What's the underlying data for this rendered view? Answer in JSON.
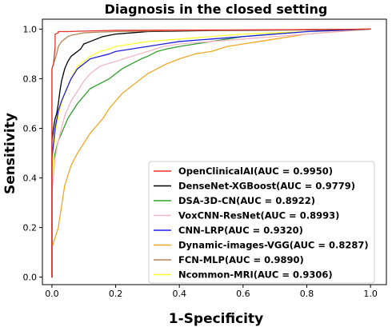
{
  "chart_data": {
    "type": "line",
    "title": "Diagnosis in the closed setting",
    "xlabel": "1-Specificity",
    "ylabel": "Sensitivity",
    "xlim": [
      -0.03,
      1.05
    ],
    "ylim": [
      -0.03,
      1.04
    ],
    "xticks": [
      0.0,
      0.2,
      0.4,
      0.6,
      0.8,
      1.0
    ],
    "yticks": [
      0.0,
      0.2,
      0.4,
      0.6,
      0.8,
      1.0
    ],
    "xtick_labels": [
      "0.0",
      "0.2",
      "0.4",
      "0.6",
      "0.8",
      "1.0"
    ],
    "ytick_labels": [
      "0.0",
      "0.2",
      "0.4",
      "0.6",
      "0.8",
      "1.0"
    ],
    "grid": false,
    "legend_position": "lower-right",
    "series": [
      {
        "name": "OpenClinicalAI(AUC = 0.9950)",
        "color": "#e8322a",
        "x": [
          0.0,
          0.0,
          0.005,
          0.01,
          0.01,
          0.02,
          0.02,
          0.05,
          0.1,
          0.2,
          0.4,
          0.6,
          0.8,
          0.9,
          1.0
        ],
        "y": [
          0.0,
          0.84,
          0.86,
          0.93,
          0.98,
          0.985,
          0.99,
          0.99,
          0.992,
          0.995,
          0.996,
          0.997,
          0.998,
          0.999,
          1.0
        ]
      },
      {
        "name": "DenseNet-XGBoost(AUC = 0.9779)",
        "color": "#000000",
        "x": [
          0.0,
          0.0,
          0.005,
          0.01,
          0.015,
          0.02,
          0.025,
          0.03,
          0.04,
          0.05,
          0.06,
          0.07,
          0.08,
          0.09,
          0.1,
          0.12,
          0.14,
          0.16,
          0.2,
          0.25,
          0.3,
          0.4,
          0.5,
          0.6,
          0.7,
          0.8,
          0.9,
          1.0
        ],
        "y": [
          0.0,
          0.55,
          0.6,
          0.64,
          0.66,
          0.7,
          0.75,
          0.79,
          0.84,
          0.87,
          0.89,
          0.9,
          0.91,
          0.92,
          0.94,
          0.95,
          0.96,
          0.97,
          0.98,
          0.985,
          0.99,
          0.992,
          0.994,
          0.995,
          0.996,
          0.997,
          0.998,
          1.0
        ]
      },
      {
        "name": "DSA-3D-CN(AUC = 0.8922)",
        "color": "#2ca02c",
        "x": [
          0.0,
          0.0,
          0.01,
          0.02,
          0.03,
          0.04,
          0.05,
          0.06,
          0.08,
          0.1,
          0.12,
          0.15,
          0.18,
          0.2,
          0.22,
          0.25,
          0.28,
          0.3,
          0.33,
          0.36,
          0.4,
          0.45,
          0.5,
          0.55,
          0.6,
          0.65,
          0.7,
          0.8,
          0.9,
          1.0
        ],
        "y": [
          0.0,
          0.44,
          0.5,
          0.55,
          0.58,
          0.61,
          0.64,
          0.66,
          0.7,
          0.73,
          0.76,
          0.78,
          0.8,
          0.82,
          0.84,
          0.86,
          0.88,
          0.89,
          0.91,
          0.92,
          0.93,
          0.94,
          0.95,
          0.96,
          0.97,
          0.975,
          0.98,
          0.99,
          0.995,
          1.0
        ]
      },
      {
        "name": "VoxCNN-ResNet(AUC = 0.8993)",
        "color": "#f4b6c2",
        "x": [
          0.0,
          0.0,
          0.01,
          0.02,
          0.03,
          0.04,
          0.05,
          0.06,
          0.08,
          0.1,
          0.12,
          0.15,
          0.2,
          0.25,
          0.3,
          0.35,
          0.4,
          0.5,
          0.6,
          0.7,
          0.8,
          0.9,
          1.0
        ],
        "y": [
          0.0,
          0.34,
          0.48,
          0.55,
          0.6,
          0.65,
          0.68,
          0.71,
          0.75,
          0.79,
          0.82,
          0.85,
          0.87,
          0.89,
          0.91,
          0.93,
          0.94,
          0.95,
          0.96,
          0.97,
          0.98,
          0.99,
          1.0
        ]
      },
      {
        "name": "CNN-LRP(AUC = 0.9320)",
        "color": "#1f1fe0",
        "x": [
          0.0,
          0.0,
          0.01,
          0.02,
          0.03,
          0.04,
          0.05,
          0.06,
          0.07,
          0.08,
          0.1,
          0.12,
          0.15,
          0.18,
          0.2,
          0.25,
          0.3,
          0.35,
          0.4,
          0.5,
          0.6,
          0.7,
          0.8,
          0.9,
          1.0
        ],
        "y": [
          0.0,
          0.48,
          0.6,
          0.67,
          0.71,
          0.74,
          0.77,
          0.8,
          0.82,
          0.84,
          0.86,
          0.88,
          0.89,
          0.9,
          0.91,
          0.92,
          0.93,
          0.94,
          0.95,
          0.96,
          0.97,
          0.98,
          0.99,
          0.995,
          1.0
        ]
      },
      {
        "name": "Dynamic-images-VGG(AUC = 0.8287)",
        "color": "#f5a623",
        "x": [
          0.0,
          0.0,
          0.02,
          0.04,
          0.06,
          0.08,
          0.1,
          0.12,
          0.14,
          0.16,
          0.18,
          0.2,
          0.22,
          0.25,
          0.28,
          0.3,
          0.33,
          0.36,
          0.4,
          0.45,
          0.5,
          0.55,
          0.6,
          0.65,
          0.7,
          0.75,
          0.8,
          0.85,
          0.9,
          0.95,
          1.0
        ],
        "y": [
          0.0,
          0.12,
          0.2,
          0.37,
          0.45,
          0.5,
          0.54,
          0.58,
          0.61,
          0.64,
          0.68,
          0.71,
          0.74,
          0.77,
          0.8,
          0.82,
          0.84,
          0.86,
          0.88,
          0.9,
          0.91,
          0.93,
          0.94,
          0.95,
          0.96,
          0.97,
          0.98,
          0.985,
          0.99,
          0.995,
          1.0
        ]
      },
      {
        "name": "FCN-MLP(AUC = 0.9890)",
        "color": "#b5835a",
        "x": [
          0.0,
          0.0,
          0.005,
          0.01,
          0.015,
          0.02,
          0.03,
          0.04,
          0.05,
          0.06,
          0.08,
          0.1,
          0.15,
          0.2,
          0.3,
          0.4,
          0.5,
          0.6,
          0.7,
          0.8,
          0.9,
          1.0
        ],
        "y": [
          0.0,
          0.84,
          0.86,
          0.88,
          0.9,
          0.93,
          0.95,
          0.96,
          0.97,
          0.975,
          0.98,
          0.985,
          0.988,
          0.99,
          0.992,
          0.994,
          0.995,
          0.996,
          0.997,
          0.998,
          0.999,
          1.0
        ]
      },
      {
        "name": "Ncommon-MRI(AUC = 0.9306)",
        "color": "#ffff33",
        "x": [
          0.0,
          0.0,
          0.01,
          0.02,
          0.03,
          0.04,
          0.05,
          0.06,
          0.08,
          0.1,
          0.12,
          0.15,
          0.18,
          0.2,
          0.25,
          0.3,
          0.35,
          0.4,
          0.5,
          0.6,
          0.7,
          0.8,
          0.9,
          1.0
        ],
        "y": [
          0.0,
          0.38,
          0.58,
          0.65,
          0.7,
          0.74,
          0.77,
          0.8,
          0.85,
          0.87,
          0.89,
          0.91,
          0.92,
          0.93,
          0.94,
          0.95,
          0.955,
          0.96,
          0.97,
          0.98,
          0.985,
          0.99,
          0.995,
          1.0
        ]
      }
    ]
  }
}
